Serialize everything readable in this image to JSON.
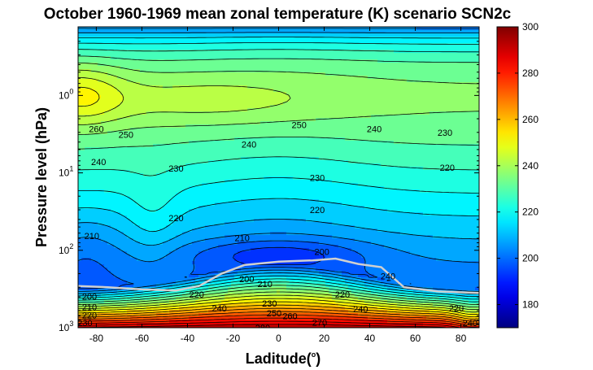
{
  "chart_data": {
    "type": "heatmap",
    "title": "October 1960-1969 mean zonal temperature (K) scenario SCN2c",
    "xlabel": "Laditude(",
    "xlabel_sup": "o",
    "xlabel_close": ")",
    "ylabel": "Pressure level (hPa)",
    "xlim": [
      -88,
      88
    ],
    "ylim_pressure_hPa": [
      1000,
      0.13
    ],
    "y_scale": "log-reversed",
    "x_ticks": [
      "-80",
      "-60",
      "-40",
      "-20",
      "0",
      "20",
      "40",
      "60",
      "80"
    ],
    "x_tick_values": [
      -80,
      -60,
      -40,
      -20,
      0,
      20,
      40,
      60,
      80
    ],
    "y_ticks": [
      {
        "base": "10",
        "exp": "0",
        "value": 1
      },
      {
        "base": "10",
        "exp": "1",
        "value": 10
      },
      {
        "base": "10",
        "exp": "2",
        "value": 100
      },
      {
        "base": "10",
        "exp": "3",
        "value": 1000
      }
    ],
    "colorbar": {
      "min": 170,
      "max": 300,
      "ticks": [
        "180",
        "200",
        "220",
        "240",
        "260",
        "280",
        "300"
      ],
      "tick_values": [
        180,
        200,
        220,
        240,
        260,
        280,
        300
      ],
      "colormap": "jet"
    },
    "contour_step_K": 5,
    "contour_labels": [
      {
        "text": "260",
        "lat": -80,
        "p": 2.7
      },
      {
        "text": "250",
        "lat": -67,
        "p": 3.2
      },
      {
        "text": "240",
        "lat": -79,
        "p": 7.2
      },
      {
        "text": "230",
        "lat": -45,
        "p": 8.7
      },
      {
        "text": "240",
        "lat": -13,
        "p": 4.3
      },
      {
        "text": "250",
        "lat": 9,
        "p": 2.4
      },
      {
        "text": "240",
        "lat": 42,
        "p": 2.7
      },
      {
        "text": "230",
        "lat": 73,
        "p": 3.0
      },
      {
        "text": "220",
        "lat": 74,
        "p": 8.5
      },
      {
        "text": "230",
        "lat": 17,
        "p": 11.5
      },
      {
        "text": "220",
        "lat": 17,
        "p": 30
      },
      {
        "text": "220",
        "lat": -45,
        "p": 38
      },
      {
        "text": "210",
        "lat": -16,
        "p": 69
      },
      {
        "text": "210",
        "lat": -82,
        "p": 65
      },
      {
        "text": "200",
        "lat": 19,
        "p": 104
      },
      {
        "text": "200",
        "lat": -14,
        "p": 233
      },
      {
        "text": "210",
        "lat": -6,
        "p": 270
      },
      {
        "text": "240",
        "lat": 48,
        "p": 215
      },
      {
        "text": "220",
        "lat": -36,
        "p": 370
      },
      {
        "text": "220",
        "lat": 28,
        "p": 370
      },
      {
        "text": "230",
        "lat": -4,
        "p": 485
      },
      {
        "text": "240",
        "lat": -26,
        "p": 560
      },
      {
        "text": "250",
        "lat": -2,
        "p": 650
      },
      {
        "text": "260",
        "lat": 5,
        "p": 700
      },
      {
        "text": "240",
        "lat": 36,
        "p": 570
      },
      {
        "text": "270",
        "lat": 18,
        "p": 850
      },
      {
        "text": "280",
        "lat": -7,
        "p": 1000
      },
      {
        "text": "220",
        "lat": 78,
        "p": 560
      },
      {
        "text": "240",
        "lat": 84,
        "p": 860
      },
      {
        "text": "200",
        "lat": -83,
        "p": 395
      },
      {
        "text": "210",
        "lat": -83,
        "p": 540
      },
      {
        "text": "220",
        "lat": -83,
        "p": 690
      },
      {
        "text": "230",
        "lat": -85,
        "p": 870
      }
    ],
    "tropopause_lat": [
      -88,
      -75,
      -60,
      -45,
      -35,
      -25,
      -15,
      0,
      15,
      25,
      35,
      45,
      55,
      70,
      88
    ],
    "tropopause_p": [
      290,
      300,
      320,
      330,
      290,
      200,
      155,
      140,
      135,
      128,
      150,
      165,
      300,
      340,
      355
    ],
    "contour_color": "#000000",
    "tropopause_color": "#d0d0d0"
  }
}
